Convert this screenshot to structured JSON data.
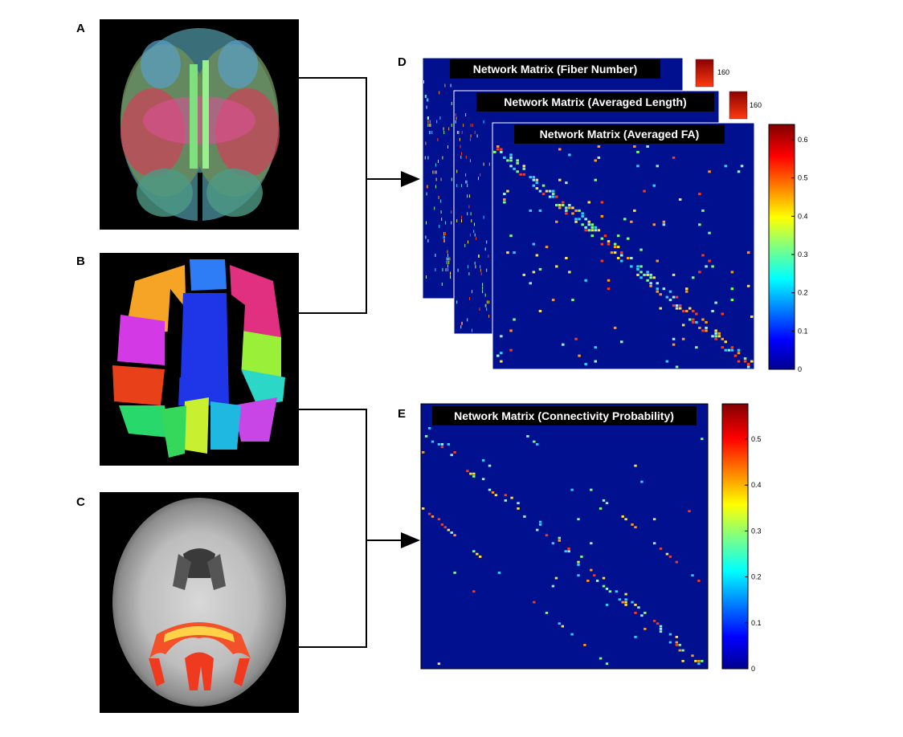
{
  "panels": {
    "a": {
      "letter": "A"
    },
    "b": {
      "letter": "B"
    },
    "c": {
      "letter": "C"
    },
    "d": {
      "letter": "D"
    },
    "e": {
      "letter": "E"
    }
  },
  "matrices": {
    "fiber_number": {
      "title": "Network Matrix (Fiber Number)",
      "colorbar_ticks": [
        "160"
      ]
    },
    "averaged_length": {
      "title": "Network Matrix (Averaged Length)",
      "colorbar_ticks": [
        "160"
      ]
    },
    "averaged_fa": {
      "title": "Network Matrix (Averaged FA)",
      "colorbar_ticks": [
        "0.6",
        "0.5",
        "0.4",
        "0.3",
        "0.2",
        "0.1",
        "0"
      ]
    },
    "connectivity_probability": {
      "title": "Network Matrix (Connectivity Probability)",
      "colorbar_ticks": [
        "0.5",
        "0.4",
        "0.3",
        "0.2",
        "0.1",
        "0"
      ]
    }
  },
  "colors": {
    "matrix_background": "#00108f",
    "jet_low": "#00008f",
    "jet_high": "#800000",
    "arrow": "#000000"
  }
}
